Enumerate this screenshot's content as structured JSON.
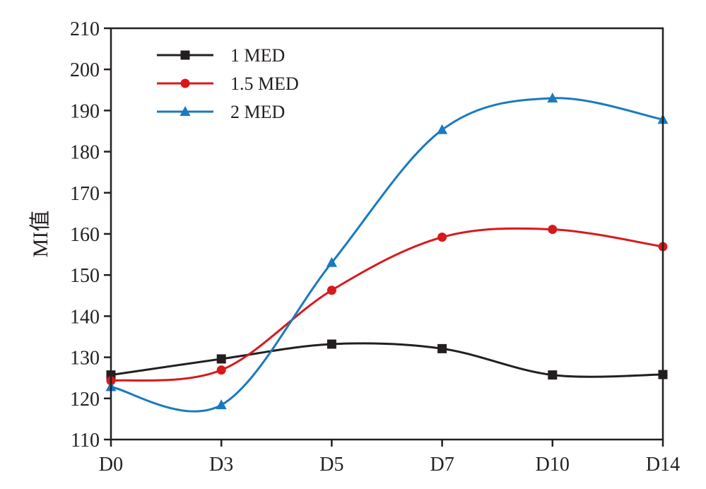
{
  "chart_data": {
    "type": "line",
    "ylabel": "MI值",
    "xlabel": "",
    "categories": [
      "D0",
      "D3",
      "D5",
      "D7",
      "D10",
      "D14"
    ],
    "ylim": [
      110,
      210
    ],
    "yticks": [
      110,
      120,
      130,
      140,
      150,
      160,
      170,
      180,
      190,
      200,
      210
    ],
    "grid": false,
    "legend_position": "top-left",
    "smooth": true,
    "series": [
      {
        "name": "1 MED",
        "color": "#231f20",
        "marker": "square",
        "values": [
          125.7,
          129.6,
          133.2,
          132.1,
          125.7,
          125.8
        ]
      },
      {
        "name": "1.5 MED",
        "color": "#d7191c",
        "marker": "circle",
        "values": [
          124.3,
          126.9,
          146.3,
          159.2,
          161.1,
          156.9
        ]
      },
      {
        "name": "2 MED",
        "color": "#1a7abf",
        "marker": "triangle",
        "values": [
          122.8,
          118.4,
          153.0,
          185.3,
          193.0,
          187.8
        ]
      }
    ]
  }
}
